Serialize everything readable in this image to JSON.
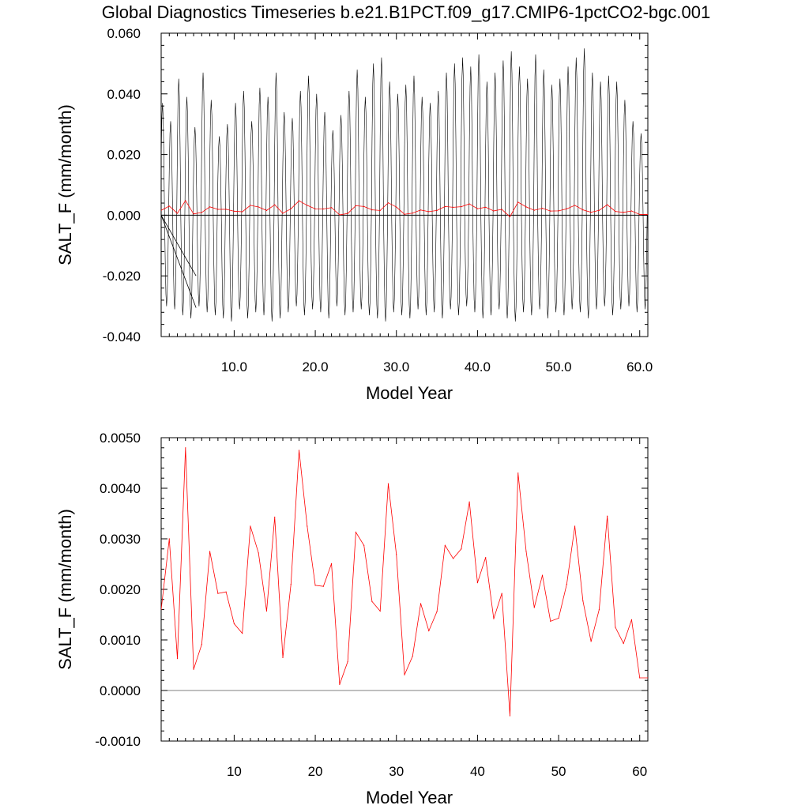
{
  "figure": {
    "title": "Global Diagnostics Timeseries b.e21.B1PCT.f09_g17.CMIP6-1pctCO2-bgc.001"
  },
  "colors": {
    "monthly_series": "#000000",
    "annual_series": "#ff0000",
    "zero_line": "#000000"
  },
  "chart_data": [
    {
      "type": "line",
      "title": "",
      "xlabel": "Model Year",
      "ylabel": "SALT_F (mm/month)",
      "xlim": [
        1,
        61
      ],
      "ylim": [
        -0.04,
        0.06
      ],
      "x_ticks": [
        "10.0",
        "20.0",
        "30.0",
        "40.0",
        "50.0",
        "60.0"
      ],
      "y_ticks": [
        "-0.040",
        "-0.020",
        "0.000",
        "0.020",
        "0.040",
        "0.060"
      ],
      "reference_line_y": 0,
      "grid": false,
      "legend": "none",
      "series": [
        {
          "kind": "monthly",
          "start_year": 1,
          "points_per_year": 12,
          "annual_maxima": [
            0.037,
            0.031,
            0.045,
            0.039,
            0.029,
            0.047,
            0.038,
            0.026,
            0.03,
            0.037,
            0.041,
            0.031,
            0.042,
            0.039,
            0.047,
            0.034,
            0.032,
            0.041,
            0.046,
            0.04,
            0.034,
            0.028,
            0.033,
            0.041,
            0.048,
            0.039,
            0.05,
            0.052,
            0.044,
            0.04,
            0.043,
            0.046,
            0.039,
            0.037,
            0.041,
            0.047,
            0.05,
            0.052,
            0.049,
            0.053,
            0.044,
            0.047,
            0.051,
            0.054,
            0.049,
            0.045,
            0.053,
            0.048,
            0.043,
            0.045,
            0.049,
            0.052,
            0.055,
            0.047,
            0.044,
            0.046,
            0.044,
            0.038,
            0.031,
            0.027
          ],
          "annual_minima": [
            -0.03,
            -0.031,
            -0.033,
            -0.034,
            -0.03,
            -0.032,
            -0.033,
            -0.034,
            -0.035,
            -0.031,
            -0.034,
            -0.032,
            -0.033,
            -0.035,
            -0.034,
            -0.032,
            -0.03,
            -0.033,
            -0.031,
            -0.032,
            -0.034,
            -0.03,
            -0.033,
            -0.032,
            -0.031,
            -0.033,
            -0.034,
            -0.035,
            -0.032,
            -0.033,
            -0.034,
            -0.031,
            -0.033,
            -0.032,
            -0.034,
            -0.031,
            -0.033,
            -0.03,
            -0.032,
            -0.034,
            -0.033,
            -0.031,
            -0.034,
            -0.035,
            -0.032,
            -0.033,
            -0.031,
            -0.034,
            -0.032,
            -0.033,
            -0.031,
            -0.032,
            -0.034,
            -0.031,
            -0.03,
            -0.033,
            -0.031,
            -0.03,
            -0.032,
            -0.031
          ]
        },
        {
          "kind": "annual",
          "x": [
            1,
            2,
            3,
            4,
            5,
            6,
            7,
            8,
            9,
            10,
            11,
            12,
            13,
            14,
            15,
            16,
            17,
            18,
            19,
            20,
            21,
            22,
            23,
            24,
            25,
            26,
            27,
            28,
            29,
            30,
            31,
            32,
            33,
            34,
            35,
            36,
            37,
            38,
            39,
            40,
            41,
            42,
            43,
            44,
            45,
            46,
            47,
            48,
            49,
            50,
            51,
            52,
            53,
            54,
            55,
            56,
            57,
            58,
            59,
            60,
            61
          ],
          "values": [
            0.0016,
            0.003,
            0.00063,
            0.0048,
            0.00042,
            0.00091,
            0.00275,
            0.00192,
            0.00195,
            0.00132,
            0.00113,
            0.00325,
            0.00272,
            0.00157,
            0.00343,
            0.00065,
            0.0021,
            0.00475,
            0.00325,
            0.00208,
            0.00206,
            0.00251,
            0.00012,
            0.00057,
            0.00313,
            0.00287,
            0.00176,
            0.00157,
            0.00409,
            0.00269,
            0.00031,
            0.00068,
            0.00172,
            0.00118,
            0.00156,
            0.00287,
            0.00261,
            0.0028,
            0.00373,
            0.00213,
            0.00263,
            0.00142,
            0.00192,
            -0.0005,
            0.0043,
            0.00275,
            0.00164,
            0.00228,
            0.00137,
            0.00143,
            0.0021,
            0.00325,
            0.00177,
            0.00097,
            0.0016,
            0.00345,
            0.00125,
            0.00093,
            0.0014,
            0.00025,
            0.00025
          ]
        }
      ]
    },
    {
      "type": "line",
      "title": "",
      "xlabel": "Model Year",
      "ylabel": "SALT_F (mm/month)",
      "xlim": [
        1,
        61
      ],
      "ylim": [
        -0.001,
        0.005
      ],
      "x_ticks": [
        "10",
        "20",
        "30",
        "40",
        "50",
        "60"
      ],
      "y_ticks": [
        "-0.0010",
        "0.0000",
        "0.0010",
        "0.0020",
        "0.0030",
        "0.0040",
        "0.0050"
      ],
      "reference_line_y": 0,
      "grid": false,
      "legend": "none",
      "series": [
        {
          "kind": "annual",
          "x": [
            1,
            2,
            3,
            4,
            5,
            6,
            7,
            8,
            9,
            10,
            11,
            12,
            13,
            14,
            15,
            16,
            17,
            18,
            19,
            20,
            21,
            22,
            23,
            24,
            25,
            26,
            27,
            28,
            29,
            30,
            31,
            32,
            33,
            34,
            35,
            36,
            37,
            38,
            39,
            40,
            41,
            42,
            43,
            44,
            45,
            46,
            47,
            48,
            49,
            50,
            51,
            52,
            53,
            54,
            55,
            56,
            57,
            58,
            59,
            60,
            61
          ],
          "values": [
            0.0016,
            0.003,
            0.00063,
            0.0048,
            0.00042,
            0.00091,
            0.00275,
            0.00192,
            0.00195,
            0.00132,
            0.00113,
            0.00325,
            0.00272,
            0.00157,
            0.00343,
            0.00065,
            0.0021,
            0.00475,
            0.00325,
            0.00208,
            0.00206,
            0.00251,
            0.00012,
            0.00057,
            0.00313,
            0.00287,
            0.00176,
            0.00157,
            0.00409,
            0.00269,
            0.00031,
            0.00068,
            0.00172,
            0.00118,
            0.00156,
            0.00287,
            0.00261,
            0.0028,
            0.00373,
            0.00213,
            0.00263,
            0.00142,
            0.00192,
            -0.0005,
            0.0043,
            0.00275,
            0.00164,
            0.00228,
            0.00137,
            0.00143,
            0.0021,
            0.00325,
            0.00177,
            0.00097,
            0.0016,
            0.00345,
            0.00125,
            0.00093,
            0.0014,
            0.00025,
            0.00025
          ]
        }
      ]
    }
  ]
}
